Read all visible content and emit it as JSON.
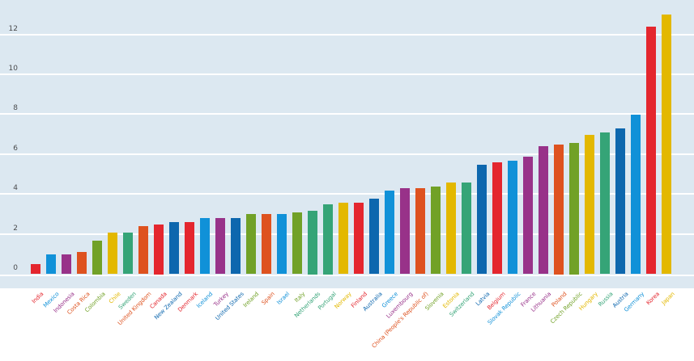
{
  "chart_data": {
    "type": "bar",
    "title": "",
    "xlabel": "",
    "ylabel": "",
    "ylim": [
      0,
      13.8
    ],
    "yticks": [
      0,
      2,
      4,
      6,
      8,
      10,
      12
    ],
    "grid": true,
    "legend_position": "none",
    "plot_background_color": "#dce8f1",
    "gridline_color": "#ffffff",
    "axis_tick_color": "#4a4b4d",
    "categories": [
      "India",
      "Mexico",
      "Indonesia",
      "Costa Rica",
      "Colombia",
      "Chile",
      "Sweden",
      "United Kingdom",
      "Canada",
      "New Zealand",
      "Denmark",
      "Iceland",
      "Turkey",
      "United States",
      "Ireland",
      "Spain",
      "Israel",
      "Italy",
      "Netherlands",
      "Portugal",
      "Norway",
      "Finland",
      "Australia",
      "Greece",
      "Luxembourg",
      "China (People's Republic of)",
      "Slovenia",
      "Estonia",
      "Switzerland",
      "Latvia",
      "Belgium",
      "Slovak Republic",
      "France",
      "Lithuania",
      "Poland",
      "Czech Republic",
      "Hungary",
      "Russia",
      "Austria",
      "Germany",
      "Korea",
      "Japan"
    ],
    "values": [
      0.5,
      1.0,
      1.0,
      1.1,
      1.7,
      2.1,
      2.1,
      2.4,
      2.5,
      2.6,
      2.6,
      2.8,
      2.8,
      2.8,
      3.0,
      3.0,
      3.0,
      3.1,
      3.2,
      3.5,
      3.6,
      3.6,
      3.8,
      4.2,
      4.3,
      4.3,
      4.4,
      4.6,
      4.6,
      5.5,
      5.6,
      5.7,
      5.9,
      6.4,
      6.5,
      6.6,
      7.0,
      7.1,
      7.3,
      8.0,
      12.4,
      13.0
    ],
    "bar_colors": [
      "#e4262e",
      "#1091d8",
      "#983289",
      "#de521f",
      "#71a127",
      "#e3b800",
      "#35a477",
      "#de521f",
      "#e4262e",
      "#0d67ae",
      "#e4262e",
      "#1091d8",
      "#983289",
      "#0d67ae",
      "#71a127",
      "#de521f",
      "#1091d8",
      "#71a127",
      "#35a477",
      "#35a477",
      "#e3b800",
      "#e4262e",
      "#0d67ae",
      "#1091d8",
      "#983289",
      "#de521f",
      "#71a127",
      "#e3b800",
      "#35a477",
      "#0d67ae",
      "#e4262e",
      "#1091d8",
      "#983289",
      "#983289",
      "#de521f",
      "#71a127",
      "#e3b800",
      "#35a477",
      "#0d67ae",
      "#1091d8",
      "#e4262e",
      "#e3b800"
    ],
    "palette": {
      "red": "#e4262e",
      "light_blue": "#1091d8",
      "purple": "#983289",
      "orange": "#de521f",
      "olive_green": "#71a127",
      "yellow": "#e3b800",
      "teal_green": "#35a477",
      "dark_blue": "#0d67ae"
    }
  }
}
